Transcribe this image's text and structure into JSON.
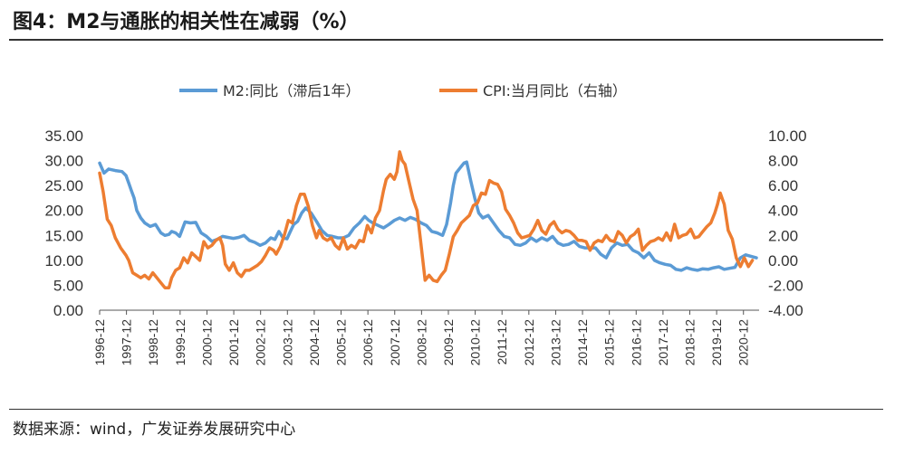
{
  "header": {
    "title": "图4：M2与通胀的相关性在减弱（%）"
  },
  "footer": {
    "source": "数据来源：wind，广发证券发展研究中心"
  },
  "chart_data": {
    "type": "line",
    "title": "图4：M2与通胀的相关性在减弱（%）",
    "colors": {
      "m2": "#5b9bd5",
      "cpi": "#ed7d31"
    },
    "left_axis": {
      "ylim": [
        0,
        35
      ],
      "ticks": [
        "35.00",
        "30.00",
        "25.00",
        "20.00",
        "15.00",
        "10.00",
        "5.00",
        "0.00"
      ],
      "tick_values": [
        35,
        30,
        25,
        20,
        15,
        10,
        5,
        0
      ]
    },
    "right_axis": {
      "ylim": [
        -4,
        10
      ],
      "ticks": [
        "10.00",
        "8.00",
        "6.00",
        "4.00",
        "2.00",
        "0.00",
        "-2.00",
        "-4.00"
      ],
      "tick_values": [
        10,
        8,
        6,
        4,
        2,
        0,
        -2,
        -4
      ]
    },
    "x_axis": {
      "start": 1996.917,
      "end": 2021.5,
      "categories": [
        "1996-12",
        "1997-12",
        "1998-12",
        "1999-12",
        "2000-12",
        "2001-12",
        "2002-12",
        "2003-12",
        "2004-12",
        "2005-12",
        "2006-12",
        "2007-12",
        "2008-12",
        "2009-12",
        "2010-12",
        "2011-12",
        "2012-12",
        "2013-12",
        "2014-12",
        "2015-12",
        "2016-12",
        "2017-12",
        "2018-12",
        "2019-12",
        "2020-12"
      ]
    },
    "series": [
      {
        "name": "M2:同比（滞后1年）",
        "axis": "left",
        "color": "#5b9bd5",
        "x": [
          1996.917,
          1997.08,
          1997.25,
          1997.5,
          1997.75,
          1997.9,
          1998.0,
          1998.1,
          1998.2,
          1998.3,
          1998.45,
          1998.6,
          1998.8,
          1999.0,
          1999.2,
          1999.35,
          1999.5,
          1999.6,
          1999.75,
          1999.9,
          2000.1,
          2000.3,
          2000.5,
          2000.7,
          2000.9,
          2001.1,
          2001.3,
          2001.5,
          2001.7,
          2001.9,
          2002.1,
          2002.3,
          2002.5,
          2002.7,
          2002.9,
          2003.1,
          2003.3,
          2003.45,
          2003.6,
          2003.75,
          2003.9,
          2004.0,
          2004.15,
          2004.3,
          2004.45,
          2004.6,
          2004.8,
          2005.0,
          2005.2,
          2005.4,
          2005.6,
          2005.8,
          2006.0,
          2006.2,
          2006.4,
          2006.6,
          2006.8,
          2006.95,
          2007.1,
          2007.3,
          2007.5,
          2007.7,
          2007.9,
          2008.1,
          2008.3,
          2008.5,
          2008.7,
          2008.9,
          2009.1,
          2009.3,
          2009.5,
          2009.7,
          2009.85,
          2010.0,
          2010.1,
          2010.2,
          2010.35,
          2010.5,
          2010.6,
          2010.75,
          2010.9,
          2011.05,
          2011.2,
          2011.4,
          2011.6,
          2011.8,
          2012.0,
          2012.2,
          2012.4,
          2012.6,
          2012.8,
          2013.0,
          2013.2,
          2013.4,
          2013.6,
          2013.8,
          2014.0,
          2014.2,
          2014.4,
          2014.6,
          2014.8,
          2015.0,
          2015.2,
          2015.4,
          2015.6,
          2015.8,
          2016.0,
          2016.2,
          2016.4,
          2016.6,
          2016.8,
          2017.0,
          2017.2,
          2017.4,
          2017.6,
          2017.8,
          2018.0,
          2018.2,
          2018.4,
          2018.6,
          2018.8,
          2019.0,
          2019.2,
          2019.4,
          2019.6,
          2019.8,
          2020.0,
          2020.2,
          2020.4,
          2020.6,
          2020.8,
          2021.0,
          2021.2,
          2021.4
        ],
        "values": [
          29.5,
          27.5,
          28.3,
          28.0,
          27.8,
          27.0,
          25.5,
          24.0,
          22.5,
          20.0,
          18.5,
          17.5,
          16.8,
          17.2,
          15.5,
          15.0,
          15.2,
          15.8,
          15.5,
          14.8,
          17.7,
          17.5,
          17.6,
          15.5,
          14.8,
          13.8,
          14.2,
          14.8,
          14.6,
          14.4,
          14.6,
          15.0,
          14.0,
          13.6,
          13.0,
          13.5,
          14.5,
          14.2,
          15.8,
          14.5,
          14.3,
          15.5,
          17.2,
          17.8,
          19.5,
          20.5,
          19.5,
          17.8,
          16.0,
          15.0,
          14.8,
          14.5,
          14.5,
          15.0,
          16.5,
          17.5,
          18.8,
          18.0,
          17.5,
          17.0,
          16.5,
          17.2,
          18.0,
          18.5,
          18.0,
          18.6,
          18.2,
          17.5,
          17.0,
          15.8,
          15.5,
          15.0,
          17.2,
          21.5,
          25.0,
          27.5,
          28.5,
          29.5,
          29.7,
          26.0,
          22.5,
          19.5,
          18.5,
          19.0,
          17.5,
          16.0,
          14.8,
          14.5,
          13.2,
          13.0,
          13.5,
          14.5,
          13.8,
          14.5,
          14.0,
          14.8,
          13.5,
          13.0,
          13.2,
          13.8,
          12.8,
          12.5,
          12.5,
          12.5,
          11.2,
          10.5,
          12.5,
          13.5,
          13.0,
          13.2,
          12.0,
          11.5,
          10.5,
          11.5,
          10.0,
          9.5,
          9.2,
          9.0,
          8.2,
          8.0,
          8.5,
          8.2,
          8.0,
          8.3,
          8.2,
          8.5,
          8.7,
          8.2,
          8.4,
          8.6,
          10.5,
          11.1,
          10.8,
          10.5
        ]
      },
      {
        "name": "CPI:当月同比（右轴）",
        "axis": "right",
        "color": "#ed7d31",
        "x": [
          1996.917,
          1997.05,
          1997.2,
          1997.35,
          1997.5,
          1997.7,
          1997.9,
          1998.0,
          1998.15,
          1998.3,
          1998.45,
          1998.6,
          1998.75,
          1998.9,
          1999.05,
          1999.2,
          1999.35,
          1999.5,
          1999.6,
          1999.75,
          1999.9,
          2000.05,
          2000.2,
          2000.35,
          2000.5,
          2000.65,
          2000.8,
          2000.95,
          2001.1,
          2001.25,
          2001.4,
          2001.5,
          2001.6,
          2001.75,
          2001.9,
          2002.05,
          2002.2,
          2002.35,
          2002.5,
          2002.65,
          2002.8,
          2002.95,
          2003.1,
          2003.25,
          2003.4,
          2003.5,
          2003.65,
          2003.8,
          2003.95,
          2004.1,
          2004.25,
          2004.4,
          2004.55,
          2004.7,
          2004.85,
          2005.0,
          2005.1,
          2005.25,
          2005.4,
          2005.55,
          2005.7,
          2005.85,
          2006.0,
          2006.15,
          2006.3,
          2006.45,
          2006.6,
          2006.75,
          2006.9,
          2007.05,
          2007.2,
          2007.35,
          2007.5,
          2007.6,
          2007.75,
          2007.9,
          2008.0,
          2008.1,
          2008.2,
          2008.3,
          2008.45,
          2008.6,
          2008.75,
          2008.9,
          2009.05,
          2009.2,
          2009.35,
          2009.5,
          2009.65,
          2009.8,
          2009.95,
          2010.1,
          2010.25,
          2010.4,
          2010.55,
          2010.7,
          2010.85,
          2011.0,
          2011.15,
          2011.3,
          2011.45,
          2011.6,
          2011.75,
          2011.9,
          2012.05,
          2012.2,
          2012.35,
          2012.5,
          2012.65,
          2012.8,
          2012.95,
          2013.1,
          2013.25,
          2013.4,
          2013.55,
          2013.7,
          2013.85,
          2014.0,
          2014.15,
          2014.3,
          2014.45,
          2014.6,
          2014.75,
          2014.9,
          2015.05,
          2015.2,
          2015.35,
          2015.5,
          2015.65,
          2015.8,
          2015.95,
          2016.1,
          2016.25,
          2016.4,
          2016.55,
          2016.7,
          2016.85,
          2017.0,
          2017.15,
          2017.3,
          2017.45,
          2017.6,
          2017.75,
          2017.9,
          2018.05,
          2018.2,
          2018.35,
          2018.5,
          2018.65,
          2018.8,
          2018.95,
          2019.1,
          2019.25,
          2019.4,
          2019.55,
          2019.7,
          2019.85,
          2019.95,
          2020.05,
          2020.2,
          2020.35,
          2020.5,
          2020.65,
          2020.8,
          2020.95,
          2021.1,
          2021.25
        ],
        "values": [
          7.0,
          5.5,
          3.3,
          2.8,
          1.8,
          1.0,
          0.4,
          0.0,
          -1.0,
          -1.2,
          -1.4,
          -1.2,
          -1.5,
          -1.0,
          -1.4,
          -1.8,
          -2.2,
          -2.2,
          -1.4,
          -0.8,
          -0.6,
          0.2,
          -0.2,
          0.6,
          0.3,
          0.0,
          1.5,
          1.0,
          1.2,
          1.6,
          1.8,
          1.2,
          -0.3,
          -0.8,
          -0.2,
          -1.0,
          -1.3,
          -0.8,
          -0.8,
          -0.6,
          -0.4,
          -0.1,
          0.4,
          1.0,
          0.8,
          0.5,
          1.1,
          2.0,
          3.2,
          3.0,
          4.4,
          5.3,
          5.3,
          4.3,
          2.8,
          1.8,
          2.4,
          1.8,
          1.6,
          1.8,
          1.2,
          0.9,
          1.8,
          0.9,
          1.2,
          1.0,
          1.6,
          1.5,
          2.8,
          2.2,
          3.4,
          4.0,
          5.6,
          6.5,
          6.9,
          6.5,
          7.1,
          8.7,
          8.0,
          7.7,
          6.3,
          4.9,
          4.0,
          1.2,
          -1.6,
          -1.2,
          -1.6,
          -1.7,
          -1.2,
          -0.8,
          0.5,
          1.9,
          2.4,
          3.0,
          3.3,
          3.6,
          4.4,
          4.6,
          5.4,
          5.3,
          6.4,
          6.2,
          6.1,
          5.5,
          4.1,
          3.6,
          3.0,
          2.2,
          1.8,
          1.9,
          2.0,
          2.5,
          3.2,
          2.4,
          2.1,
          2.8,
          3.1,
          2.5,
          2.2,
          2.4,
          2.3,
          2.0,
          1.6,
          1.6,
          1.5,
          0.8,
          1.4,
          1.6,
          1.5,
          2.0,
          1.6,
          1.5,
          2.3,
          2.0,
          1.4,
          1.9,
          2.1,
          2.5,
          0.8,
          1.2,
          1.5,
          1.6,
          1.8,
          1.6,
          2.2,
          1.6,
          2.9,
          1.8,
          2.0,
          2.1,
          2.5,
          1.8,
          1.9,
          2.3,
          2.7,
          3.0,
          3.8,
          4.5,
          5.4,
          4.5,
          2.4,
          1.7,
          0.2,
          -0.5,
          0.2,
          -0.5,
          0.0
        ]
      }
    ]
  }
}
